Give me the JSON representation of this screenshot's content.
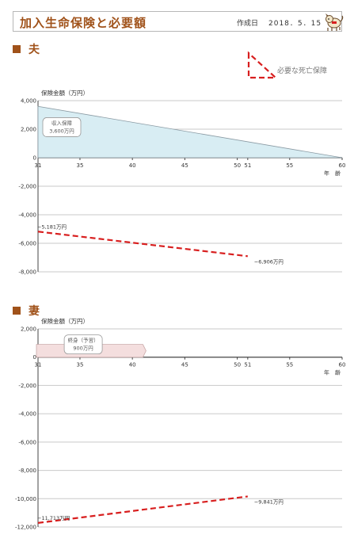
{
  "header": {
    "title": "加入生命保険と必要額",
    "date_label": "作成日",
    "date_value": "2018．5．15"
  },
  "legend": {
    "label": "必要な死亡保障",
    "color": "#d81f1f"
  },
  "colors": {
    "accent": "#a0521a",
    "red": "#d81f1f",
    "husband_fill": "#d8edf3",
    "wife_fill": "#f4dede"
  },
  "chart_data": [
    {
      "type": "area",
      "title": "夫",
      "ylabel": "保険金額（万円）",
      "xlabel": "年　齢",
      "ylim": [
        -8000,
        4000
      ],
      "yticks": [
        "4,000",
        "2,000",
        "0",
        "-2,000",
        "-4,000",
        "-6,000",
        "-8,000"
      ],
      "xticks": [
        "31",
        "35",
        "40",
        "45",
        "50",
        "51",
        "55",
        "60"
      ],
      "grid": true,
      "series": [
        {
          "name": "収入保障",
          "kind": "area",
          "x": [
            31,
            60
          ],
          "y": [
            3600,
            0
          ],
          "box_lines": [
            "収入保障",
            "3,600万円"
          ]
        },
        {
          "name": "必要な死亡保障",
          "kind": "dashed",
          "x": [
            31,
            51
          ],
          "y": [
            -5181,
            -6906
          ]
        }
      ],
      "annotations": [
        {
          "text": "−5,181万円",
          "x": 31,
          "y": -5181
        },
        {
          "text": "−6,906万円",
          "x": 51,
          "y": -6906
        }
      ]
    },
    {
      "type": "area",
      "title": "妻",
      "ylabel": "保険金額（万円）",
      "xlabel": "年　齢",
      "ylim": [
        -12000,
        2000
      ],
      "yticks": [
        "2,000",
        "0",
        "-2,000",
        "-4,000",
        "-6,000",
        "-8,000",
        "-10,000",
        "-12,000"
      ],
      "xticks": [
        "31",
        "35",
        "40",
        "45",
        "50",
        "51",
        "55",
        "60"
      ],
      "grid": true,
      "series": [
        {
          "name": "終身（予習）",
          "kind": "bar",
          "x": [
            31,
            41
          ],
          "y": [
            900,
            900
          ],
          "box_lines": [
            "終身（予習）",
            "900万円"
          ]
        },
        {
          "name": "必要な死亡保障",
          "kind": "dashed",
          "x": [
            31,
            51
          ],
          "y": [
            -11713,
            -9841
          ]
        }
      ],
      "annotations": [
        {
          "text": "−11,713万円",
          "x": 31,
          "y": -11713
        },
        {
          "text": "−9,841万円",
          "x": 51,
          "y": -9841
        }
      ]
    }
  ]
}
